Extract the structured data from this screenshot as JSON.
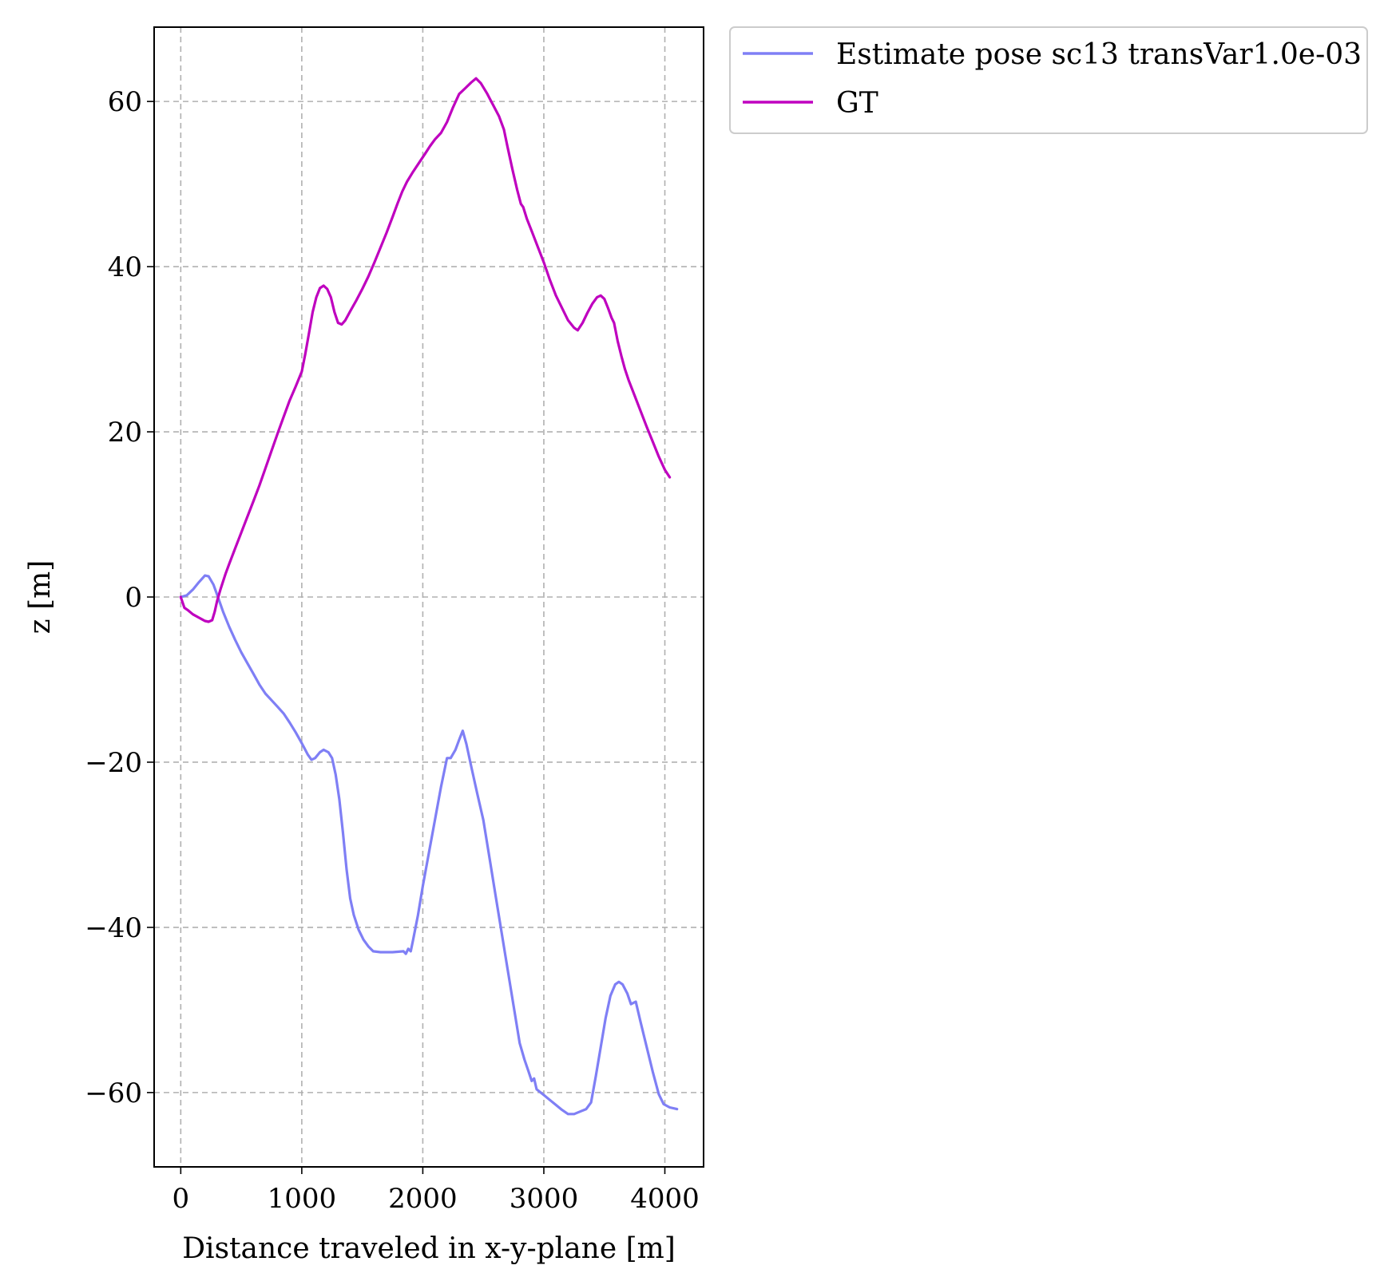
{
  "chart_data": {
    "type": "line",
    "xlabel": "Distance traveled in x-y-plane [m]",
    "ylabel": "z [m]",
    "xlim": [
      -220,
      4320
    ],
    "ylim": [
      -69,
      69
    ],
    "x_ticks": [
      {
        "value": 0,
        "label": "0"
      },
      {
        "value": 1000,
        "label": "1000"
      },
      {
        "value": 2000,
        "label": "2000"
      },
      {
        "value": 3000,
        "label": "3000"
      },
      {
        "value": 4000,
        "label": "4000"
      }
    ],
    "y_ticks": [
      {
        "value": -60,
        "label": "−60"
      },
      {
        "value": -40,
        "label": "−40"
      },
      {
        "value": -20,
        "label": "−20"
      },
      {
        "value": 0,
        "label": "0"
      },
      {
        "value": 20,
        "label": "20"
      },
      {
        "value": 40,
        "label": "40"
      },
      {
        "value": 60,
        "label": "60"
      }
    ],
    "grid": true,
    "legend_position": "outside-top-right",
    "series": [
      {
        "name": "Estimate pose sc13 transVar1.0e-03",
        "color": "#7f7ff5",
        "points": [
          [
            0,
            0
          ],
          [
            50,
            0.2
          ],
          [
            100,
            0.9
          ],
          [
            150,
            1.8
          ],
          [
            200,
            2.6
          ],
          [
            230,
            2.5
          ],
          [
            270,
            1.5
          ],
          [
            300,
            0.3
          ],
          [
            350,
            -1.8
          ],
          [
            400,
            -3.6
          ],
          [
            450,
            -5.2
          ],
          [
            500,
            -6.7
          ],
          [
            550,
            -8.0
          ],
          [
            600,
            -9.3
          ],
          [
            650,
            -10.6
          ],
          [
            700,
            -11.7
          ],
          [
            750,
            -12.5
          ],
          [
            800,
            -13.3
          ],
          [
            850,
            -14.1
          ],
          [
            900,
            -15.2
          ],
          [
            950,
            -16.4
          ],
          [
            1000,
            -17.7
          ],
          [
            1050,
            -19.1
          ],
          [
            1080,
            -19.7
          ],
          [
            1110,
            -19.5
          ],
          [
            1150,
            -18.8
          ],
          [
            1180,
            -18.5
          ],
          [
            1220,
            -18.8
          ],
          [
            1250,
            -19.5
          ],
          [
            1280,
            -21.5
          ],
          [
            1310,
            -24.5
          ],
          [
            1340,
            -28.5
          ],
          [
            1370,
            -33.0
          ],
          [
            1400,
            -36.5
          ],
          [
            1430,
            -38.5
          ],
          [
            1470,
            -40.3
          ],
          [
            1510,
            -41.5
          ],
          [
            1550,
            -42.3
          ],
          [
            1590,
            -42.9
          ],
          [
            1650,
            -43.0
          ],
          [
            1750,
            -43.0
          ],
          [
            1840,
            -42.9
          ],
          [
            1860,
            -43.2
          ],
          [
            1880,
            -42.6
          ],
          [
            1900,
            -42.9
          ],
          [
            1920,
            -41.5
          ],
          [
            1960,
            -38.5
          ],
          [
            2000,
            -35.0
          ],
          [
            2050,
            -31.0
          ],
          [
            2100,
            -27.0
          ],
          [
            2150,
            -23.0
          ],
          [
            2200,
            -19.5
          ],
          [
            2230,
            -19.5
          ],
          [
            2270,
            -18.5
          ],
          [
            2300,
            -17.3
          ],
          [
            2330,
            -16.2
          ],
          [
            2360,
            -17.8
          ],
          [
            2400,
            -20.5
          ],
          [
            2450,
            -23.8
          ],
          [
            2500,
            -27.0
          ],
          [
            2550,
            -31.5
          ],
          [
            2600,
            -36.0
          ],
          [
            2650,
            -40.5
          ],
          [
            2700,
            -45.0
          ],
          [
            2750,
            -49.5
          ],
          [
            2800,
            -54.0
          ],
          [
            2840,
            -56.0
          ],
          [
            2870,
            -57.3
          ],
          [
            2900,
            -58.6
          ],
          [
            2920,
            -58.3
          ],
          [
            2940,
            -59.6
          ],
          [
            3000,
            -60.3
          ],
          [
            3050,
            -60.9
          ],
          [
            3100,
            -61.5
          ],
          [
            3150,
            -62.1
          ],
          [
            3200,
            -62.6
          ],
          [
            3250,
            -62.6
          ],
          [
            3300,
            -62.3
          ],
          [
            3350,
            -62.0
          ],
          [
            3390,
            -61.2
          ],
          [
            3430,
            -58.0
          ],
          [
            3470,
            -54.5
          ],
          [
            3510,
            -51.0
          ],
          [
            3550,
            -48.3
          ],
          [
            3590,
            -46.9
          ],
          [
            3620,
            -46.6
          ],
          [
            3650,
            -46.9
          ],
          [
            3690,
            -48.0
          ],
          [
            3720,
            -49.3
          ],
          [
            3760,
            -49.0
          ],
          [
            3800,
            -51.5
          ],
          [
            3850,
            -54.5
          ],
          [
            3900,
            -57.5
          ],
          [
            3950,
            -60.2
          ],
          [
            3990,
            -61.4
          ],
          [
            4040,
            -61.8
          ],
          [
            4100,
            -62.0
          ]
        ]
      },
      {
        "name": "GT",
        "color": "#bf00bf",
        "points": [
          [
            0,
            0
          ],
          [
            30,
            -1.3
          ],
          [
            60,
            -1.6
          ],
          [
            100,
            -2.1
          ],
          [
            150,
            -2.5
          ],
          [
            200,
            -2.9
          ],
          [
            230,
            -3.0
          ],
          [
            260,
            -2.8
          ],
          [
            280,
            -1.8
          ],
          [
            300,
            -0.5
          ],
          [
            330,
            1.0
          ],
          [
            370,
            2.8
          ],
          [
            400,
            4.0
          ],
          [
            450,
            5.9
          ],
          [
            500,
            7.8
          ],
          [
            550,
            9.7
          ],
          [
            600,
            11.6
          ],
          [
            650,
            13.5
          ],
          [
            700,
            15.6
          ],
          [
            750,
            17.7
          ],
          [
            800,
            19.8
          ],
          [
            850,
            21.8
          ],
          [
            900,
            23.8
          ],
          [
            950,
            25.5
          ],
          [
            1000,
            27.3
          ],
          [
            1030,
            29.5
          ],
          [
            1060,
            32.0
          ],
          [
            1090,
            34.5
          ],
          [
            1120,
            36.3
          ],
          [
            1150,
            37.4
          ],
          [
            1180,
            37.7
          ],
          [
            1210,
            37.3
          ],
          [
            1240,
            36.3
          ],
          [
            1270,
            34.5
          ],
          [
            1300,
            33.2
          ],
          [
            1330,
            33.0
          ],
          [
            1360,
            33.5
          ],
          [
            1400,
            34.6
          ],
          [
            1450,
            35.9
          ],
          [
            1500,
            37.3
          ],
          [
            1550,
            38.8
          ],
          [
            1600,
            40.5
          ],
          [
            1650,
            42.3
          ],
          [
            1700,
            44.1
          ],
          [
            1750,
            46.0
          ],
          [
            1790,
            47.6
          ],
          [
            1830,
            49.1
          ],
          [
            1870,
            50.3
          ],
          [
            1920,
            51.5
          ],
          [
            1970,
            52.6
          ],
          [
            2020,
            53.7
          ],
          [
            2060,
            54.6
          ],
          [
            2100,
            55.4
          ],
          [
            2150,
            56.2
          ],
          [
            2200,
            57.5
          ],
          [
            2250,
            59.3
          ],
          [
            2300,
            60.9
          ],
          [
            2350,
            61.6
          ],
          [
            2400,
            62.3
          ],
          [
            2440,
            62.8
          ],
          [
            2480,
            62.2
          ],
          [
            2530,
            61.0
          ],
          [
            2580,
            59.6
          ],
          [
            2630,
            58.2
          ],
          [
            2670,
            56.6
          ],
          [
            2700,
            54.5
          ],
          [
            2740,
            51.8
          ],
          [
            2780,
            49.3
          ],
          [
            2810,
            47.6
          ],
          [
            2830,
            47.2
          ],
          [
            2860,
            45.8
          ],
          [
            2900,
            44.3
          ],
          [
            2950,
            42.4
          ],
          [
            3000,
            40.5
          ],
          [
            3050,
            38.4
          ],
          [
            3100,
            36.5
          ],
          [
            3150,
            35.0
          ],
          [
            3200,
            33.5
          ],
          [
            3250,
            32.6
          ],
          [
            3280,
            32.3
          ],
          [
            3320,
            33.2
          ],
          [
            3360,
            34.4
          ],
          [
            3400,
            35.5
          ],
          [
            3440,
            36.3
          ],
          [
            3470,
            36.5
          ],
          [
            3500,
            36.1
          ],
          [
            3530,
            35.0
          ],
          [
            3560,
            33.8
          ],
          [
            3580,
            33.2
          ],
          [
            3610,
            31.0
          ],
          [
            3640,
            29.2
          ],
          [
            3670,
            27.6
          ],
          [
            3700,
            26.3
          ],
          [
            3750,
            24.4
          ],
          [
            3800,
            22.5
          ],
          [
            3850,
            20.6
          ],
          [
            3900,
            18.8
          ],
          [
            3950,
            17.0
          ],
          [
            4000,
            15.4
          ],
          [
            4040,
            14.5
          ]
        ]
      }
    ]
  }
}
